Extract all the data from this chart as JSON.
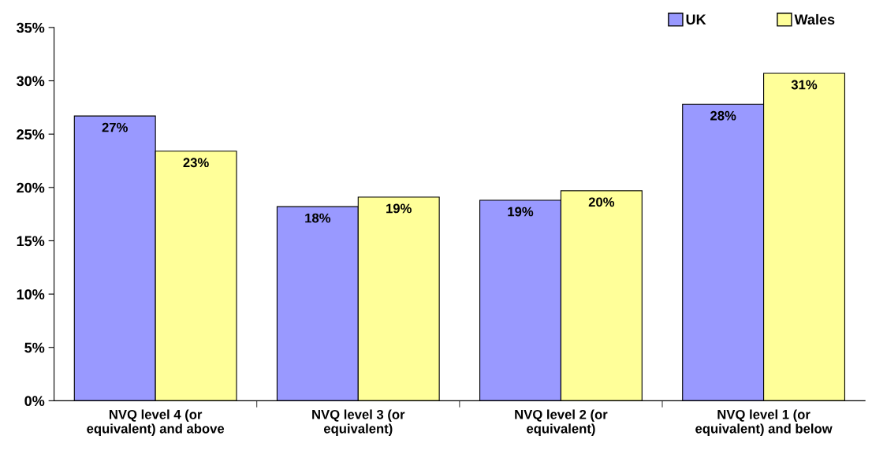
{
  "chart_data": {
    "type": "bar",
    "categories": [
      "NVQ level 4 (or\nequivalent) and above",
      "NVQ level 3 (or\nequivalent)",
      "NVQ level 2 (or\nequivalent)",
      "NVQ level 1 (or\nequivalent) and below"
    ],
    "series": [
      {
        "name": "UK",
        "color": "#9999ff",
        "values": [
          26.7,
          18.2,
          18.8,
          27.8
        ],
        "value_labels": [
          "27%",
          "18%",
          "19%",
          "28%"
        ]
      },
      {
        "name": "Wales",
        "color": "#ffff99",
        "values": [
          23.4,
          19.1,
          19.7,
          30.7
        ],
        "value_labels": [
          "23%",
          "19%",
          "20%",
          "31%"
        ]
      }
    ],
    "ylim": [
      0,
      35
    ],
    "yticks": [
      {
        "value": 0,
        "label": "0%"
      },
      {
        "value": 5,
        "label": "5%"
      },
      {
        "value": 10,
        "label": "10%"
      },
      {
        "value": 15,
        "label": "15%"
      },
      {
        "value": 20,
        "label": "20%"
      },
      {
        "value": 25,
        "label": "25%"
      },
      {
        "value": 30,
        "label": "30%"
      },
      {
        "value": 35,
        "label": "35%"
      }
    ],
    "grid": false,
    "legend": "top right"
  }
}
